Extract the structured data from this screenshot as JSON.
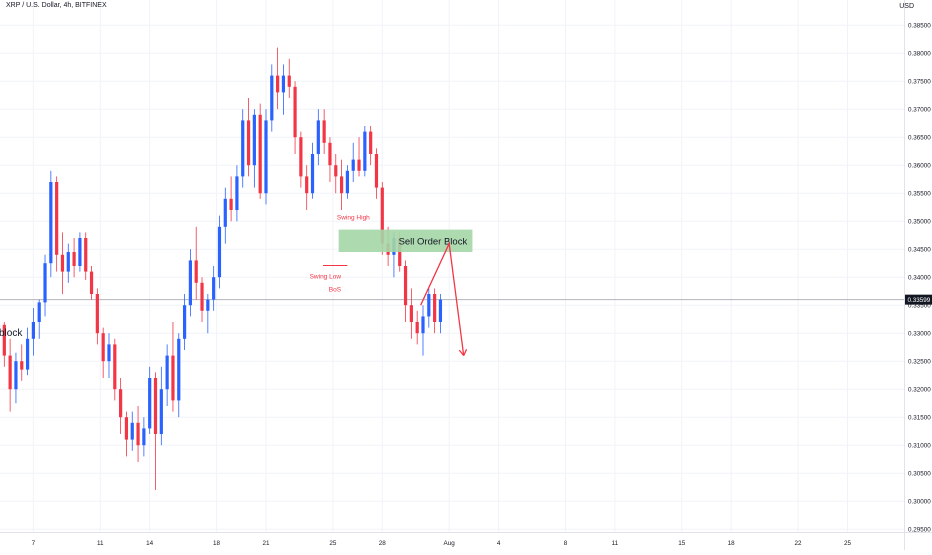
{
  "header": {
    "symbol_title": "XRP / U.S. Dollar, 4h, BITFINEX",
    "currency": "USD"
  },
  "colors": {
    "up": "#2962ff",
    "down": "#f23645",
    "order_block_fill": "#a5d6a7",
    "annotation": "#f23645",
    "grid": "#f0f3fa",
    "price_line": "#b2b5be",
    "price_tag_bg": "#131722"
  },
  "chart_data": {
    "type": "candlestick",
    "y_axis": {
      "min": 0.2945,
      "max": 0.3895,
      "ticks": [
        0.295,
        0.3,
        0.305,
        0.31,
        0.315,
        0.32,
        0.325,
        0.33,
        0.335,
        0.34,
        0.345,
        0.35,
        0.355,
        0.36,
        0.365,
        0.37,
        0.375,
        0.38,
        0.385
      ],
      "tick_labels": [
        "0.29500",
        "0.30000",
        "0.30500",
        "0.31000",
        "0.31500",
        "0.32000",
        "0.32500",
        "0.33000",
        "0.33500",
        "0.34000",
        "0.34500",
        "0.35000",
        "0.35500",
        "0.36000",
        "0.36500",
        "0.37000",
        "0.37500",
        "0.38000",
        "0.38500"
      ],
      "position": "right",
      "grid": true
    },
    "x_axis": {
      "tick_labels": [
        "7",
        "11",
        "14",
        "18",
        "21",
        "25",
        "28",
        "Aug",
        "4",
        "8",
        "11",
        "15",
        "18",
        "22",
        "25"
      ],
      "tick_bars": [
        6,
        17.5,
        26,
        37.5,
        46,
        57.5,
        66,
        77.5,
        86,
        97.5,
        106,
        117.5,
        126,
        137.5,
        146
      ]
    },
    "current_price": 0.33599,
    "current_price_label": "0.33599",
    "candles": [
      [
        0.331,
        0.333,
        0.327,
        0.3315
      ],
      [
        0.3315,
        0.332,
        0.324,
        0.326
      ],
      [
        0.326,
        0.329,
        0.316,
        0.32
      ],
      [
        0.32,
        0.3265,
        0.3175,
        0.325
      ],
      [
        0.325,
        0.328,
        0.3215,
        0.3235
      ],
      [
        0.3235,
        0.331,
        0.3225,
        0.329
      ],
      [
        0.329,
        0.3345,
        0.326,
        0.332
      ],
      [
        0.332,
        0.336,
        0.329,
        0.3355
      ],
      [
        0.3355,
        0.344,
        0.333,
        0.3425
      ],
      [
        0.3425,
        0.359,
        0.34,
        0.357
      ],
      [
        0.357,
        0.358,
        0.341,
        0.344
      ],
      [
        0.344,
        0.348,
        0.337,
        0.341
      ],
      [
        0.341,
        0.346,
        0.339,
        0.3445
      ],
      [
        0.3445,
        0.347,
        0.34,
        0.342
      ],
      [
        0.342,
        0.348,
        0.341,
        0.347
      ],
      [
        0.347,
        0.348,
        0.3395,
        0.341
      ],
      [
        0.341,
        0.342,
        0.336,
        0.337
      ],
      [
        0.337,
        0.338,
        0.328,
        0.33
      ],
      [
        0.33,
        0.331,
        0.322,
        0.325
      ],
      [
        0.325,
        0.33,
        0.322,
        0.328
      ],
      [
        0.328,
        0.329,
        0.318,
        0.32
      ],
      [
        0.32,
        0.322,
        0.312,
        0.315
      ],
      [
        0.315,
        0.316,
        0.308,
        0.311
      ],
      [
        0.311,
        0.316,
        0.309,
        0.314
      ],
      [
        0.314,
        0.317,
        0.307,
        0.31
      ],
      [
        0.31,
        0.315,
        0.308,
        0.313
      ],
      [
        0.313,
        0.324,
        0.312,
        0.322
      ],
      [
        0.322,
        0.323,
        0.302,
        0.312
      ],
      [
        0.312,
        0.324,
        0.31,
        0.32
      ],
      [
        0.32,
        0.328,
        0.317,
        0.326
      ],
      [
        0.326,
        0.332,
        0.316,
        0.318
      ],
      [
        0.318,
        0.33,
        0.315,
        0.329
      ],
      [
        0.329,
        0.337,
        0.327,
        0.335
      ],
      [
        0.335,
        0.345,
        0.333,
        0.343
      ],
      [
        0.343,
        0.349,
        0.336,
        0.339
      ],
      [
        0.339,
        0.34,
        0.332,
        0.334
      ],
      [
        0.334,
        0.337,
        0.33,
        0.336
      ],
      [
        0.336,
        0.342,
        0.334,
        0.34
      ],
      [
        0.34,
        0.351,
        0.338,
        0.349
      ],
      [
        0.349,
        0.356,
        0.346,
        0.354
      ],
      [
        0.354,
        0.358,
        0.35,
        0.352
      ],
      [
        0.352,
        0.36,
        0.35,
        0.358
      ],
      [
        0.358,
        0.37,
        0.356,
        0.368
      ],
      [
        0.368,
        0.372,
        0.358,
        0.36
      ],
      [
        0.36,
        0.37,
        0.356,
        0.369
      ],
      [
        0.369,
        0.371,
        0.354,
        0.355
      ],
      [
        0.355,
        0.37,
        0.353,
        0.368
      ],
      [
        0.368,
        0.378,
        0.366,
        0.376
      ],
      [
        0.376,
        0.381,
        0.37,
        0.373
      ],
      [
        0.373,
        0.378,
        0.369,
        0.376
      ],
      [
        0.376,
        0.379,
        0.372,
        0.374
      ],
      [
        0.374,
        0.375,
        0.362,
        0.365
      ],
      [
        0.365,
        0.366,
        0.356,
        0.358
      ],
      [
        0.358,
        0.36,
        0.352,
        0.355
      ],
      [
        0.355,
        0.364,
        0.354,
        0.362
      ],
      [
        0.362,
        0.37,
        0.36,
        0.368
      ],
      [
        0.368,
        0.37,
        0.362,
        0.364
      ],
      [
        0.364,
        0.365,
        0.357,
        0.36
      ],
      [
        0.36,
        0.362,
        0.355,
        0.358
      ],
      [
        0.358,
        0.361,
        0.352,
        0.355
      ],
      [
        0.355,
        0.36,
        0.354,
        0.359
      ],
      [
        0.359,
        0.364,
        0.357,
        0.361
      ],
      [
        0.361,
        0.365,
        0.358,
        0.359
      ],
      [
        0.359,
        0.367,
        0.358,
        0.366
      ],
      [
        0.366,
        0.367,
        0.36,
        0.362
      ],
      [
        0.362,
        0.363,
        0.354,
        0.356
      ],
      [
        0.356,
        0.357,
        0.344,
        0.346
      ],
      [
        0.346,
        0.349,
        0.342,
        0.344
      ],
      [
        0.344,
        0.348,
        0.34,
        0.347
      ],
      [
        0.347,
        0.348,
        0.341,
        0.342
      ],
      [
        0.342,
        0.343,
        0.332,
        0.335
      ],
      [
        0.335,
        0.338,
        0.329,
        0.332
      ],
      [
        0.332,
        0.334,
        0.328,
        0.33
      ],
      [
        0.33,
        0.335,
        0.326,
        0.333
      ],
      [
        0.333,
        0.338,
        0.331,
        0.337
      ],
      [
        0.337,
        0.338,
        0.33,
        0.332
      ],
      [
        0.332,
        0.337,
        0.33,
        0.336
      ]
    ]
  },
  "annotations": {
    "order_block_label": "Sell Order Block",
    "swing_high_label": "Swing High",
    "swing_low_label": "Swing Low",
    "bos_label": "BoS",
    "left_label": "block",
    "order_block_top": 0.3485,
    "order_block_bottom": 0.3445,
    "swing_low_price": 0.3421,
    "arrow_path": [
      [
        72.6,
        0.335
      ],
      [
        77.5,
        0.346
      ],
      [
        80.0,
        0.326
      ]
    ]
  }
}
